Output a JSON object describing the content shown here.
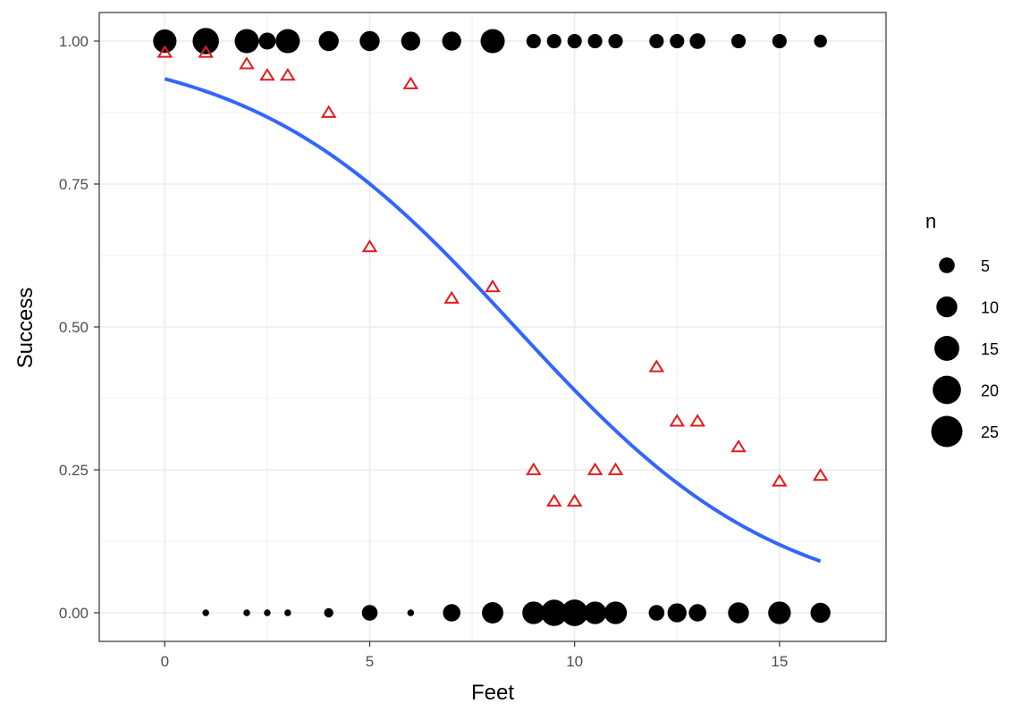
{
  "chart_data": {
    "type": "scatter",
    "title": "",
    "xlabel": "Feet",
    "ylabel": "Success",
    "xlim": [
      -1.6,
      17.6
    ],
    "ylim": [
      -0.05,
      1.05
    ],
    "x_ticks": [
      0,
      5,
      10,
      15
    ],
    "x_tick_labels": [
      "0",
      "5",
      "10",
      "15"
    ],
    "y_ticks": [
      0,
      0.25,
      0.5,
      0.75,
      1
    ],
    "y_tick_labels": [
      "0.00",
      "0.25",
      "0.50",
      "0.75",
      "1.00"
    ],
    "grid": true,
    "legend_position": "right",
    "legend": {
      "title": "n",
      "entries": [
        {
          "label": "5",
          "size": 5
        },
        {
          "label": "10",
          "size": 10
        },
        {
          "label": "15",
          "size": 15
        },
        {
          "label": "20",
          "size": 20
        },
        {
          "label": "25",
          "size": 25
        }
      ]
    },
    "colors": {
      "points": "#000000",
      "proportion": "#e41a1c",
      "fit": "#3366ff",
      "grid": "#ebebeb",
      "panel_border": "#333333"
    },
    "series": [
      {
        "kind": "counts",
        "outcome": 1,
        "x": [
          0,
          1,
          2,
          2.5,
          3,
          4,
          5,
          6,
          7,
          8,
          9,
          9.5,
          10,
          10.5,
          11,
          12,
          12.5,
          13,
          14,
          15,
          16
        ],
        "n": [
          13,
          17,
          14,
          6,
          14,
          9,
          9,
          8,
          8,
          14,
          4,
          4,
          4,
          4,
          4,
          4,
          4,
          5,
          4,
          4,
          3
        ]
      },
      {
        "kind": "counts",
        "outcome": 0,
        "x": [
          1,
          2,
          2.5,
          3,
          4,
          5,
          6,
          7,
          8,
          9,
          9.5,
          10,
          10.5,
          11,
          12,
          12.5,
          13,
          14,
          15,
          16
        ],
        "n": [
          0.4,
          0.4,
          0.4,
          0.4,
          1.2,
          5,
          0.4,
          6.5,
          10.5,
          12,
          17,
          17.5,
          12,
          12,
          5,
          8,
          6.5,
          10,
          12,
          9
        ]
      },
      {
        "kind": "proportion",
        "x": [
          0,
          1,
          2,
          2.5,
          3,
          4,
          5,
          6,
          7,
          8,
          9,
          9.5,
          10,
          10.5,
          11,
          12,
          12.5,
          13,
          14,
          15,
          16
        ],
        "y": [
          0.98,
          0.98,
          0.96,
          0.94,
          0.94,
          0.875,
          0.64,
          0.925,
          0.55,
          0.57,
          0.25,
          0.195,
          0.195,
          0.25,
          0.25,
          0.43,
          0.335,
          0.335,
          0.29,
          0.23,
          0.24
        ]
      },
      {
        "kind": "fit",
        "model": "logistic",
        "x": [
          0,
          16
        ],
        "intercept": 2.65,
        "slope": -0.31
      }
    ]
  }
}
